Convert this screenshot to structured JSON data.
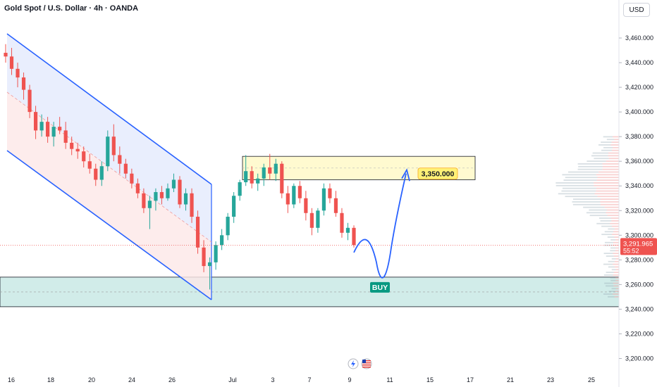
{
  "header": {
    "title": "Gold Spot / U.S. Dollar · 4h · OANDA",
    "currency": "USD"
  },
  "colors": {
    "bull": "#26a69a",
    "bear": "#ef5350",
    "channel": "#2962ff",
    "resistance_fill": "#fff9c4",
    "support_fill": "#b2dfdb",
    "price_tag": "#ef5350",
    "buy_tag": "#089981"
  },
  "icons": [
    "lightning-icon",
    "us-flag-icon"
  ],
  "chart_data": {
    "type": "candlestick",
    "y_axis_ticks": [
      "3,460.000",
      "3,440.000",
      "3,420.000",
      "3,400.000",
      "3,380.000",
      "3,360.000",
      "3,340.000",
      "3,320.000",
      "3,300.000",
      "3,280.000",
      "3,260.000",
      "3,240.000",
      "3,220.000",
      "3,200.000"
    ],
    "x_axis_ticks": [
      "16",
      "18",
      "20",
      "24",
      "26",
      "Jul",
      "3",
      "7",
      "9",
      "11",
      "15",
      "17",
      "21",
      "23",
      "25"
    ],
    "ylim": [
      3194,
      3468
    ],
    "current_price": "3,291.965",
    "countdown": "55:52",
    "target_label": "3,350.000",
    "buy_label": "BUY",
    "resistance_zone": [
      3345,
      3364
    ],
    "support_zone": [
      3242,
      3266
    ],
    "candles": [
      [
        3448,
        3455,
        3440,
        3445
      ],
      [
        3445,
        3452,
        3430,
        3435
      ],
      [
        3435,
        3440,
        3420,
        3428
      ],
      [
        3428,
        3432,
        3410,
        3418
      ],
      [
        3418,
        3422,
        3395,
        3400
      ],
      [
        3400,
        3405,
        3378,
        3385
      ],
      [
        3385,
        3398,
        3380,
        3392
      ],
      [
        3392,
        3396,
        3375,
        3380
      ],
      [
        3380,
        3392,
        3372,
        3388
      ],
      [
        3388,
        3396,
        3382,
        3385
      ],
      [
        3385,
        3392,
        3370,
        3375
      ],
      [
        3375,
        3380,
        3365,
        3370
      ],
      [
        3370,
        3375,
        3362,
        3368
      ],
      [
        3368,
        3372,
        3355,
        3360
      ],
      [
        3360,
        3366,
        3350,
        3354
      ],
      [
        3354,
        3358,
        3340,
        3345
      ],
      [
        3345,
        3360,
        3340,
        3356
      ],
      [
        3356,
        3385,
        3352,
        3380
      ],
      [
        3380,
        3390,
        3360,
        3365
      ],
      [
        3365,
        3372,
        3350,
        3358
      ],
      [
        3358,
        3362,
        3346,
        3350
      ],
      [
        3350,
        3354,
        3338,
        3342
      ],
      [
        3342,
        3346,
        3330,
        3334
      ],
      [
        3334,
        3338,
        3318,
        3322
      ],
      [
        3322,
        3332,
        3305,
        3328
      ],
      [
        3328,
        3338,
        3320,
        3335
      ],
      [
        3335,
        3340,
        3325,
        3330
      ],
      [
        3330,
        3342,
        3328,
        3338
      ],
      [
        3338,
        3350,
        3335,
        3345
      ],
      [
        3345,
        3348,
        3322,
        3325
      ],
      [
        3325,
        3338,
        3320,
        3334
      ],
      [
        3334,
        3338,
        3310,
        3315
      ],
      [
        3315,
        3320,
        3285,
        3290
      ],
      [
        3290,
        3296,
        3270,
        3275
      ],
      [
        3275,
        3282,
        3256,
        3278
      ],
      [
        3278,
        3295,
        3272,
        3292
      ],
      [
        3292,
        3305,
        3288,
        3300
      ],
      [
        3300,
        3318,
        3296,
        3315
      ],
      [
        3315,
        3335,
        3310,
        3332
      ],
      [
        3332,
        3345,
        3328,
        3343
      ],
      [
        3343,
        3365,
        3340,
        3352
      ],
      [
        3352,
        3356,
        3338,
        3342
      ],
      [
        3342,
        3350,
        3336,
        3346
      ],
      [
        3346,
        3358,
        3340,
        3355
      ],
      [
        3355,
        3366,
        3345,
        3350
      ],
      [
        3350,
        3362,
        3344,
        3358
      ],
      [
        3358,
        3360,
        3330,
        3334
      ],
      [
        3334,
        3340,
        3318,
        3325
      ],
      [
        3325,
        3342,
        3322,
        3340
      ],
      [
        3340,
        3344,
        3326,
        3330
      ],
      [
        3330,
        3336,
        3312,
        3318
      ],
      [
        3318,
        3322,
        3300,
        3306
      ],
      [
        3306,
        3322,
        3302,
        3320
      ],
      [
        3320,
        3342,
        3316,
        3338
      ],
      [
        3338,
        3342,
        3326,
        3330
      ],
      [
        3330,
        3336,
        3315,
        3318
      ],
      [
        3318,
        3322,
        3298,
        3302
      ],
      [
        3302,
        3310,
        3296,
        3306
      ],
      [
        3306,
        3308,
        3290,
        3292
      ]
    ]
  }
}
